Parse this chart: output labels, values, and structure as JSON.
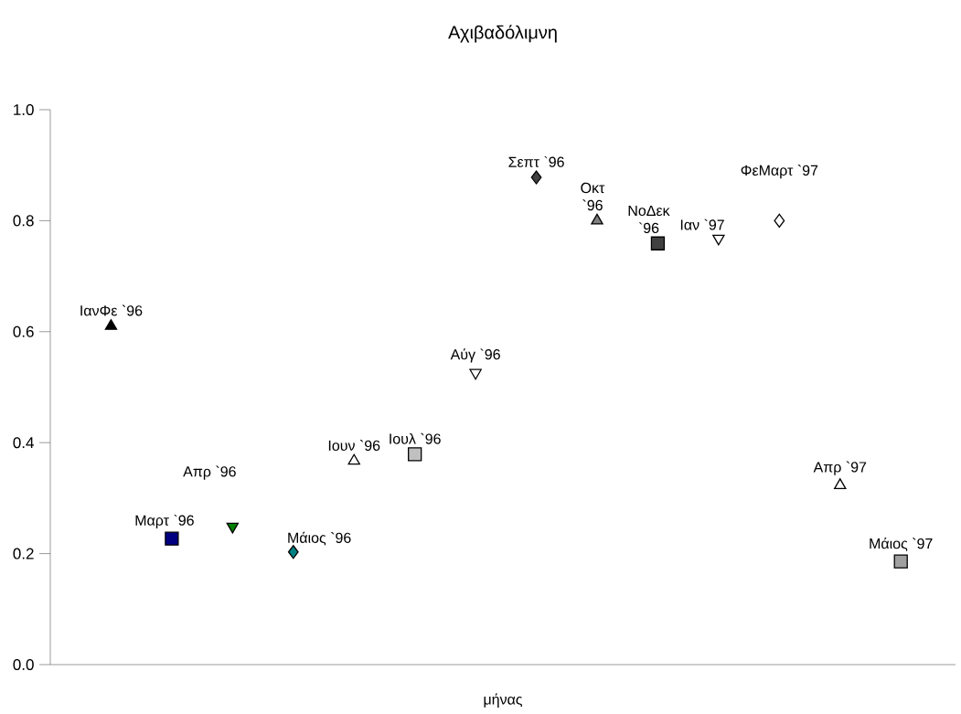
{
  "chart_data": {
    "type": "scatter",
    "title": "Αχιβαδόλιμνη",
    "xlabel": "μήνας",
    "tick_labels": "y",
    "categories": [
      null,
      null,
      null,
      null,
      null,
      null,
      null,
      null,
      null,
      null,
      null,
      null,
      null,
      null
    ],
    "ylim": [
      0,
      1
    ],
    "yticks": [
      {
        "value": 0,
        "label": "0.0"
      },
      {
        "value": 0.2,
        "label": "0.2"
      },
      {
        "value": 0.4,
        "label": "0.4"
      },
      {
        "value": 0.6,
        "label": "0.6"
      },
      {
        "value": 0.8,
        "label": "0.8"
      },
      {
        "value": 1,
        "label": "1.0"
      }
    ],
    "series": [
      {
        "name": "ΙανΦε `96",
        "color": "#000000",
        "marker": "triangle",
        "values": [
          0.61,
          null,
          null,
          null,
          null,
          null,
          null,
          null,
          null,
          null,
          null,
          null,
          null,
          null
        ]
      },
      {
        "name": "Μαρτ `96",
        "color": "#000080",
        "marker": "square",
        "values": [
          null,
          0.227,
          null,
          null,
          null,
          null,
          null,
          null,
          null,
          null,
          null,
          null,
          null,
          null
        ]
      },
      {
        "name": "Απρ `96",
        "color": "#008000",
        "marker": "triangle-down",
        "values": [
          null,
          null,
          0.249,
          null,
          null,
          null,
          null,
          null,
          null,
          null,
          null,
          null,
          null,
          null
        ]
      },
      {
        "name": "Μάιος `96",
        "color": "#008080",
        "marker": "diamond",
        "values": [
          null,
          null,
          null,
          0.203,
          null,
          null,
          null,
          null,
          null,
          null,
          null,
          null,
          null,
          null
        ]
      },
      {
        "name": "Ιουν `96",
        "color": "#ffffff",
        "marker": "triangle",
        "values": [
          null,
          null,
          null,
          null,
          0.367,
          null,
          null,
          null,
          null,
          null,
          null,
          null,
          null,
          null
        ]
      },
      {
        "name": "Ιουλ `96",
        "color": "#c0c0c0",
        "marker": "square",
        "values": [
          null,
          null,
          null,
          null,
          null,
          0.379,
          null,
          null,
          null,
          null,
          null,
          null,
          null,
          null
        ]
      },
      {
        "name": "Αύγ `96",
        "color": "#ffffff",
        "marker": "triangle-down",
        "values": [
          null,
          null,
          null,
          null,
          null,
          null,
          0.526,
          null,
          null,
          null,
          null,
          null,
          null,
          null
        ]
      },
      {
        "name": "Σεπτ `96",
        "color": "#404040",
        "marker": "diamond",
        "values": [
          null,
          null,
          null,
          null,
          null,
          null,
          null,
          0.878,
          null,
          null,
          null,
          null,
          null,
          null
        ]
      },
      {
        "name": "Οκτ `96",
        "color": "#808080",
        "marker": "triangle",
        "values": [
          null,
          null,
          null,
          null,
          null,
          null,
          null,
          null,
          0.8,
          null,
          null,
          null,
          null,
          null
        ]
      },
      {
        "name": "ΝοΔεκ `96",
        "color": "#404040",
        "marker": "square",
        "values": [
          null,
          null,
          null,
          null,
          null,
          null,
          null,
          null,
          null,
          0.759,
          null,
          null,
          null,
          null
        ]
      },
      {
        "name": "Ιαν `97",
        "color": "#ffffff",
        "marker": "triangle-down",
        "values": [
          null,
          null,
          null,
          null,
          null,
          null,
          null,
          null,
          null,
          null,
          0.768,
          null,
          null,
          null
        ]
      },
      {
        "name": "ΦεΜαρτ `97",
        "color": "#ffffff",
        "marker": "diamond",
        "values": [
          null,
          null,
          null,
          null,
          null,
          null,
          null,
          null,
          null,
          null,
          null,
          0.8,
          null,
          null
        ]
      },
      {
        "name": "Απρ `97",
        "color": "#ffffff",
        "marker": "triangle",
        "values": [
          null,
          null,
          null,
          null,
          null,
          null,
          null,
          null,
          null,
          null,
          null,
          null,
          0.323,
          null
        ]
      },
      {
        "name": "Μάιος `97",
        "color": "#a0a0a0",
        "marker": "square",
        "values": [
          null,
          null,
          null,
          null,
          null,
          null,
          null,
          null,
          null,
          null,
          null,
          null,
          null,
          0.186
        ]
      }
    ]
  }
}
